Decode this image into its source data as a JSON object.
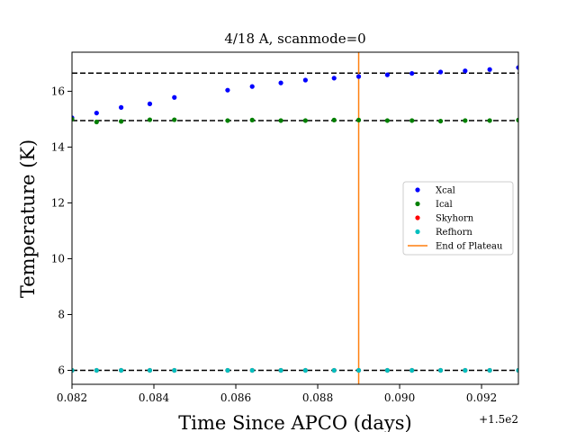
{
  "chart_data": {
    "type": "scatter",
    "title": "4/18 A, scanmode=0",
    "xlabel": "Time Since APCO (days)",
    "ylabel": "Temperature (K)",
    "x_offset_label": "+1.5e2",
    "xlim": [
      150.082,
      150.0929
    ],
    "ylim": [
      5.5,
      17.4
    ],
    "xticks": [
      150.082,
      150.084,
      150.086,
      150.088,
      150.09,
      150.092
    ],
    "xtick_labels": [
      "0.082",
      "0.084",
      "0.086",
      "0.088",
      "0.090",
      "0.092"
    ],
    "yticks": [
      6,
      8,
      10,
      12,
      14,
      16
    ],
    "ytick_labels": [
      "6",
      "8",
      "10",
      "12",
      "14",
      "16"
    ],
    "grid": false,
    "legend_position": "center-right",
    "x": [
      150.082,
      150.0826,
      150.0832,
      150.0839,
      150.0845,
      150.0858,
      150.0864,
      150.0871,
      150.0877,
      150.0884,
      150.089,
      150.0897,
      150.0903,
      150.091,
      150.0916,
      150.0922,
      150.0929
    ],
    "series": [
      {
        "name": "Xcal",
        "color": "#0000ff",
        "values": [
          15.05,
          15.22,
          15.42,
          15.55,
          15.78,
          16.04,
          16.17,
          16.3,
          16.4,
          16.47,
          16.53,
          16.59,
          16.64,
          16.69,
          16.73,
          16.78,
          16.85
        ]
      },
      {
        "name": "Ical",
        "color": "#008000",
        "values": [
          15.0,
          14.9,
          14.92,
          14.98,
          14.98,
          14.95,
          14.97,
          14.95,
          14.95,
          14.97,
          14.97,
          14.95,
          14.95,
          14.93,
          14.95,
          14.95,
          14.97
        ]
      },
      {
        "name": "Skyhorn",
        "color": "#ff0000",
        "values": [
          6.0,
          6.0,
          6.0,
          6.0,
          6.0,
          6.0,
          6.0,
          6.0,
          6.0,
          6.0,
          6.0,
          6.0,
          6.0,
          6.0,
          6.0,
          6.0,
          6.0
        ]
      },
      {
        "name": "Refhorn",
        "color": "#00bfbf",
        "values": [
          6.0,
          6.0,
          6.0,
          6.0,
          6.0,
          6.0,
          6.0,
          6.0,
          6.0,
          6.0,
          6.0,
          6.0,
          6.0,
          6.0,
          6.0,
          6.0,
          6.0
        ]
      }
    ],
    "hlines": [
      16.65,
      14.95,
      6.0
    ],
    "vline": {
      "name": "End of Plateau",
      "x": 150.089,
      "color": "#ff7f0e"
    }
  }
}
